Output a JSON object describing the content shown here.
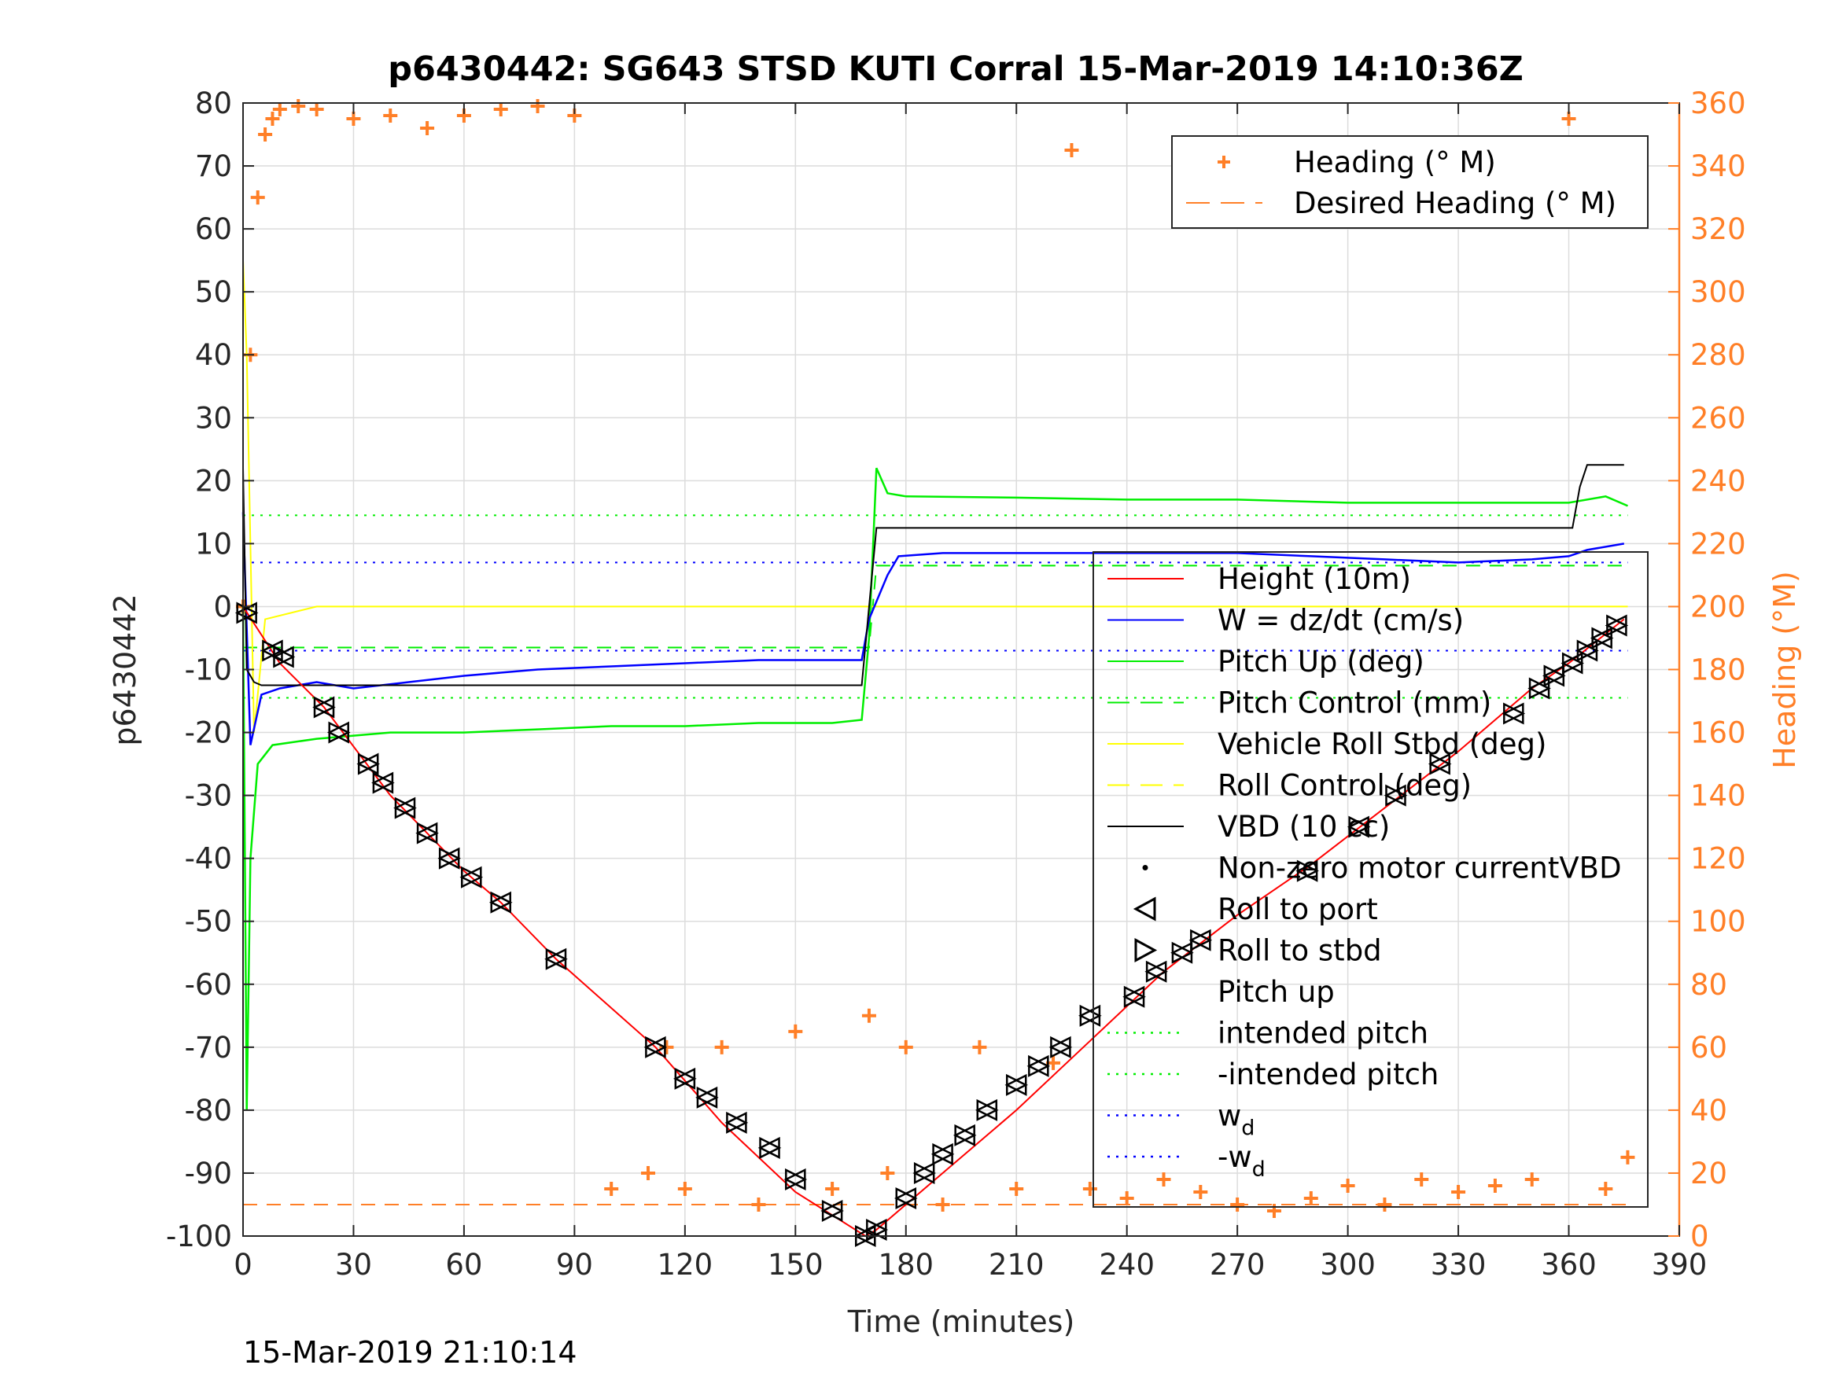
{
  "chart_data": {
    "type": "line",
    "title": "p6430442: SG643 STSD KUTI Corral 15-Mar-2019 14:10:36Z",
    "xlabel": "Time (minutes)",
    "ylabel": "p6430442",
    "y2label": "Heading (°M)",
    "timestamp": "15-Mar-2019 21:10:14",
    "xlim": [
      0,
      390
    ],
    "ylim": [
      -100,
      80
    ],
    "y2lim": [
      0,
      360
    ],
    "x_ticks": [
      "0",
      "30",
      "60",
      "90",
      "120",
      "150",
      "180",
      "210",
      "240",
      "270",
      "300",
      "330",
      "360",
      "390"
    ],
    "y_ticks": [
      "-100",
      "-90",
      "-80",
      "-70",
      "-60",
      "-50",
      "-40",
      "-30",
      "-20",
      "-10",
      "0",
      "10",
      "20",
      "30",
      "40",
      "50",
      "60",
      "70",
      "80"
    ],
    "y2_ticks": [
      "0",
      "20",
      "40",
      "60",
      "80",
      "100",
      "120",
      "140",
      "160",
      "180",
      "200",
      "220",
      "240",
      "260",
      "280",
      "300",
      "320",
      "340",
      "360"
    ],
    "grid": true,
    "colors": {
      "height": "#ff0000",
      "w": "#0000ff",
      "pitch": "#00ee00",
      "roll": "#ffff00",
      "vbd": "#000000",
      "heading": "#ff7f27"
    },
    "legend_upper": [
      {
        "label": "Heading (° M)",
        "style": "plus"
      },
      {
        "label": "Desired Heading (° M)",
        "style": "dash"
      }
    ],
    "legend_lower": [
      {
        "label": "Height (10m)",
        "style": "line",
        "color": "#ff0000"
      },
      {
        "label": "W = dz/dt (cm/s)",
        "style": "line",
        "color": "#0000ff"
      },
      {
        "label": "Pitch Up (deg)",
        "style": "line",
        "color": "#00ee00"
      },
      {
        "label": "Pitch Control (mm)",
        "style": "dash",
        "color": "#00ee00"
      },
      {
        "label": "Vehicle Roll Stbd (deg)",
        "style": "line",
        "color": "#ffff00"
      },
      {
        "label": "Roll Control (deg)",
        "style": "dash",
        "color": "#ffff00"
      },
      {
        "label": "VBD (10 cc)",
        "style": "line",
        "color": "#000000"
      },
      {
        "label": "Non-zero motor currentVBD",
        "style": "dot",
        "color": "#000000"
      },
      {
        "label": "Roll to port",
        "style": "tri-left",
        "color": "#000000"
      },
      {
        "label": "Roll to stbd",
        "style": "tri-right",
        "color": "#000000"
      },
      {
        "label": "Pitch up",
        "style": "tri-up",
        "color": "#000000"
      },
      {
        "label": "intended pitch",
        "style": "dot-line",
        "color": "#00ee00"
      },
      {
        "label": "-intended pitch",
        "style": "dot-line",
        "color": "#00ee00"
      },
      {
        "label": "w",
        "sub": "d",
        "style": "dot-line",
        "color": "#0000ff"
      },
      {
        "label": "-w",
        "sub": "d",
        "style": "dot-line",
        "color": "#0000ff"
      }
    ],
    "series": [
      {
        "name": "Height (10m)",
        "color": "#ff0000",
        "x": [
          0,
          10,
          22,
          40,
          60,
          70,
          85,
          112,
          130,
          150,
          169,
          172,
          190,
          210,
          230,
          250,
          270,
          290,
          310,
          330,
          350,
          360,
          375
        ],
        "y": [
          0,
          -9,
          -16,
          -30,
          -42,
          -47,
          -56,
          -70,
          -82,
          -93,
          -100,
          -99,
          -90,
          -80,
          -69,
          -58,
          -49,
          -41,
          -32,
          -23,
          -13,
          -9,
          -2
        ]
      },
      {
        "name": "W = dz/dt (cm/s)",
        "color": "#0000ff",
        "x": [
          0,
          2,
          5,
          10,
          20,
          30,
          45,
          60,
          80,
          100,
          120,
          140,
          150,
          160,
          165,
          168,
          170,
          175,
          178,
          190,
          210,
          230,
          250,
          270,
          290,
          310,
          330,
          350,
          360,
          365,
          375
        ],
        "y": [
          15,
          -22,
          -14,
          -13,
          -12,
          -13,
          -12,
          -11,
          -10,
          -9.5,
          -9,
          -8.5,
          -8.5,
          -8.5,
          -8.5,
          -8.5,
          -2,
          5,
          8,
          8.5,
          8.5,
          8.5,
          8.5,
          8.5,
          8,
          7.5,
          7,
          7.5,
          8,
          9,
          10
        ]
      },
      {
        "name": "Pitch Up (deg)",
        "color": "#00ee00",
        "x": [
          0,
          1,
          2,
          4,
          8,
          20,
          40,
          60,
          80,
          100,
          120,
          140,
          160,
          168,
          170,
          172,
          175,
          180,
          210,
          240,
          270,
          300,
          330,
          360,
          370,
          376
        ],
        "y": [
          0,
          -80,
          -40,
          -25,
          -22,
          -21,
          -20,
          -20,
          -19.5,
          -19,
          -19,
          -18.5,
          -18.5,
          -18,
          -5,
          22,
          18,
          17.5,
          17.3,
          17,
          17,
          16.5,
          16.5,
          16.5,
          17.5,
          16
        ]
      },
      {
        "name": "Vehicle Roll Stbd (deg)",
        "color": "#ffff00",
        "x": [
          0,
          1,
          3,
          6,
          20,
          40,
          60,
          80,
          100,
          120,
          140,
          160,
          168,
          172,
          200,
          240,
          280,
          320,
          360,
          376
        ],
        "y": [
          55,
          40,
          -20,
          -2,
          0,
          0,
          0,
          0,
          0,
          0,
          0,
          0,
          0,
          0,
          0,
          0,
          0,
          0,
          0,
          0
        ]
      },
      {
        "name": "VBD (10 cc)",
        "color": "#000000",
        "x": [
          0,
          1,
          3,
          5,
          25,
          60,
          100,
          140,
          168,
          172,
          174,
          220,
          260,
          300,
          350,
          361,
          363,
          365,
          375
        ],
        "y": [
          22,
          -10,
          -12,
          -12.5,
          -12.5,
          -12.5,
          -12.5,
          -12.5,
          -12.5,
          12.5,
          12.5,
          12.5,
          12.5,
          12.5,
          12.5,
          12.5,
          19,
          22.5,
          22.5
        ]
      },
      {
        "name": "Heading (° M)",
        "color": "#ff7f27",
        "x": [
          0,
          2,
          4,
          6,
          8,
          10,
          15,
          20,
          30,
          40,
          50,
          60,
          70,
          80,
          90,
          100,
          110,
          115,
          120,
          130,
          140,
          150,
          160,
          170,
          175,
          180,
          190,
          200,
          210,
          220,
          225,
          230,
          240,
          250,
          260,
          270,
          280,
          290,
          300,
          310,
          320,
          330,
          340,
          350,
          360,
          370,
          376
        ],
        "y": [
          200,
          280,
          330,
          350,
          355,
          358,
          359,
          358,
          355,
          356,
          352,
          356,
          358,
          359,
          356,
          15,
          20,
          60,
          15,
          60,
          10,
          65,
          15,
          70,
          20,
          60,
          10,
          60,
          15,
          55,
          345,
          15,
          12,
          18,
          14,
          10,
          8,
          12,
          16,
          10,
          18,
          14,
          16,
          18,
          355,
          15,
          25
        ]
      },
      {
        "name": "Desired Heading (° M)",
        "color": "#ff7f27",
        "x": [
          0,
          376
        ],
        "y": [
          10,
          10
        ]
      },
      {
        "name": "intended pitch",
        "color": "#00ee00",
        "x": [
          0,
          376
        ],
        "y": [
          14.5,
          14.5
        ]
      },
      {
        "name": "-intended pitch",
        "color": "#00ee00",
        "x": [
          0,
          376
        ],
        "y": [
          -14.5,
          -14.5
        ]
      },
      {
        "name": "w_d",
        "color": "#0000ff",
        "x": [
          0,
          376
        ],
        "y": [
          7,
          7
        ]
      },
      {
        "name": "-w_d",
        "color": "#0000ff",
        "x": [
          0,
          376
        ],
        "y": [
          -7,
          -7
        ]
      },
      {
        "name": "Pitch Control (mm)",
        "color": "#00ee00",
        "x": [
          0,
          170,
          172,
          376
        ],
        "y": [
          -6.5,
          -6.5,
          6.5,
          6.5
        ]
      }
    ],
    "markers": {
      "times": [
        1,
        8,
        11,
        22,
        26,
        34,
        38,
        44,
        50,
        56,
        62,
        70,
        85,
        112,
        120,
        126,
        134,
        143,
        150,
        160,
        169,
        172,
        180,
        185,
        190,
        196,
        202,
        210,
        216,
        222,
        230,
        242,
        248,
        255,
        260,
        289,
        303,
        313,
        325,
        345,
        352,
        356,
        361,
        365,
        369,
        373
      ],
      "values": [
        -1,
        -7,
        -8,
        -16,
        -20,
        -25,
        -28,
        -32,
        -36,
        -40,
        -43,
        -47,
        -56,
        -70,
        -75,
        -78,
        -82,
        -86,
        -91,
        -96,
        -100,
        -99,
        -94,
        -90,
        -87,
        -84,
        -80,
        -76,
        -73,
        -70,
        -65,
        -62,
        -58,
        -55,
        -53,
        -42,
        -35,
        -30,
        -25,
        -17,
        -13,
        -11,
        -9,
        -7,
        -5,
        -3
      ]
    }
  }
}
